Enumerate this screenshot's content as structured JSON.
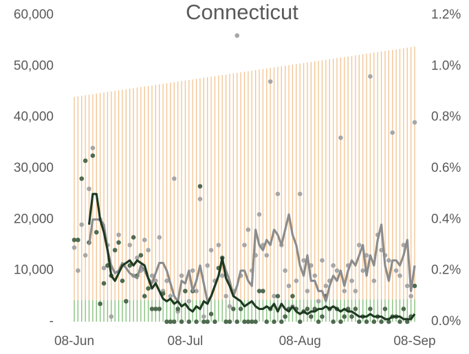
{
  "chart_data": {
    "type": "combo",
    "title": "Connecticut",
    "categories": [
      "08-Jun",
      null,
      null,
      null,
      null,
      null,
      null,
      null,
      null,
      null,
      null,
      null,
      null,
      null,
      null,
      null,
      null,
      null,
      null,
      null,
      null,
      null,
      null,
      null,
      null,
      null,
      null,
      null,
      null,
      null,
      "08-Jul",
      null,
      null,
      null,
      null,
      null,
      null,
      null,
      null,
      null,
      null,
      null,
      null,
      null,
      null,
      null,
      null,
      null,
      null,
      null,
      null,
      null,
      null,
      null,
      null,
      null,
      null,
      null,
      null,
      null,
      null,
      "08-Aug",
      null,
      null,
      null,
      null,
      null,
      null,
      null,
      null,
      null,
      null,
      null,
      null,
      null,
      null,
      null,
      null,
      null,
      null,
      null,
      null,
      null,
      null,
      null,
      null,
      null,
      null,
      null,
      null,
      null,
      null,
      "08-Sep"
    ],
    "ylim": [
      0,
      60000
    ],
    "yticks": [
      {
        "value": 0,
        "label": "-"
      },
      {
        "value": 10000,
        "label": "10,000"
      },
      {
        "value": 20000,
        "label": "20,000"
      },
      {
        "value": 30000,
        "label": "30,000"
      },
      {
        "value": 40000,
        "label": "40,000"
      },
      {
        "value": 50000,
        "label": "50,000"
      },
      {
        "value": 60000,
        "label": "60,000"
      }
    ],
    "y2lim": [
      0,
      1.2
    ],
    "y2ticks": [
      {
        "value": 0,
        "label": "0.0%"
      },
      {
        "value": 0.2,
        "label": "0.2%"
      },
      {
        "value": 0.4,
        "label": "0.4%"
      },
      {
        "value": 0.6,
        "label": "0.6%"
      },
      {
        "value": 0.8,
        "label": "0.8%"
      },
      {
        "value": 1.0,
        "label": "1.0%"
      },
      {
        "value": 1.2,
        "label": "1.2%"
      }
    ],
    "series": [
      {
        "type": "bar",
        "color": "#f2c28e",
        "values": [
          44000,
          44107,
          44214,
          44321,
          44428,
          44535,
          44642,
          44749,
          44856,
          44963,
          45070,
          45177,
          45284,
          45391,
          45498,
          45605,
          45712,
          45819,
          45926,
          46033,
          46140,
          46247,
          46354,
          46461,
          46568,
          46675,
          46782,
          46889,
          46996,
          47103,
          47210,
          47317,
          47424,
          47531,
          47638,
          47745,
          47852,
          47959,
          48066,
          48173,
          48280,
          48387,
          48494,
          48601,
          48708,
          48815,
          48922,
          49029,
          49136,
          49243,
          49350,
          49457,
          49564,
          49671,
          49778,
          49885,
          49992,
          50099,
          50206,
          50313,
          50420,
          50527,
          50634,
          50741,
          50848,
          50955,
          51062,
          51169,
          51276,
          51383,
          51490,
          51597,
          51704,
          51811,
          51918,
          52025,
          52132,
          52239,
          52346,
          52453,
          52560,
          52667,
          52774,
          52881,
          52988,
          53095,
          53202,
          53309,
          53416,
          53523,
          53630,
          53737,
          53844
        ]
      },
      {
        "type": "bar",
        "color": "#7fc37f",
        "values": [
          4200,
          4202,
          4204,
          4206,
          4208,
          4210,
          4212,
          4214,
          4216,
          4218,
          4220,
          4222,
          4224,
          4226,
          4228,
          4230,
          4232,
          4234,
          4236,
          4238,
          4240,
          4242,
          4244,
          4246,
          4248,
          4250,
          4252,
          4254,
          4256,
          4258,
          4260,
          4262,
          4264,
          4266,
          4268,
          4270,
          4272,
          4274,
          4276,
          4278,
          4280,
          4282,
          4284,
          4286,
          4288,
          4290,
          4292,
          4294,
          4296,
          4298,
          4300,
          4302,
          4304,
          4306,
          4308,
          4310,
          4312,
          4314,
          4316,
          4318,
          4320,
          4322,
          4324,
          4326,
          4328,
          4330,
          4332,
          4334,
          4336,
          4338,
          4340,
          4342,
          4344,
          4346,
          4348,
          4350,
          4352,
          4354,
          4356,
          4358,
          4360,
          4362,
          4364,
          4366,
          4368,
          4370,
          4372,
          4374,
          4376,
          4378,
          4380,
          4382,
          4384
        ]
      },
      {
        "type": "scatter",
        "axis": "y2",
        "color": "#a6a6a6",
        "values": [
          0.29,
          0.2,
          0.38,
          0.26,
          0.52,
          0.68,
          0.35,
          0.4,
          0.21,
          0.3,
          0.02,
          0.28,
          0.34,
          0.22,
          0.08,
          0.3,
          0.18,
          0.25,
          0.2,
          0.32,
          0.28,
          0.18,
          0.16,
          0.33,
          0.12,
          0.16,
          0.1,
          0.56,
          0.04,
          0.18,
          0.12,
          0.08,
          0.2,
          0.12,
          0.48,
          0.02,
          0.22,
          0.28,
          0.16,
          0.3,
          0.18,
          0.1,
          0.06,
          0.12,
          1.12,
          0.18,
          0.3,
          0.36,
          0.2,
          0.26,
          0.42,
          0.3,
          0.26,
          0.94,
          0.1,
          0.5,
          0.3,
          0.2,
          0.14,
          0.06,
          0.16,
          0.5,
          0.24,
          0.12,
          0.22,
          0.18,
          0.08,
          0.24,
          0.14,
          0.16,
          0.22,
          0.2,
          0.72,
          0.12,
          0.22,
          0.16,
          0.12,
          0.3,
          0.2,
          0.26,
          0.96,
          0.16,
          0.34,
          0.28,
          0.26,
          0.24,
          0.74,
          0.2,
          0.18,
          0.3,
          0.14,
          0.1,
          0.78
        ]
      },
      {
        "type": "scatter",
        "axis": "y2",
        "color": "#4f6b50",
        "values": [
          0.32,
          0.32,
          0.56,
          0.63,
          0.31,
          0.65,
          0.35,
          0.07,
          0.15,
          0.22,
          0.18,
          0.28,
          0.31,
          0.16,
          0.08,
          0.22,
          0.33,
          0.18,
          0.26,
          0.1,
          0.13,
          0.05,
          0.05,
          0.05,
          0.11,
          0,
          0,
          0,
          0.05,
          0,
          0.12,
          0,
          0.12,
          0,
          0.53,
          0,
          0,
          0.03,
          0,
          0.21,
          0.25,
          0,
          0,
          0.05,
          0,
          0.05,
          0,
          0,
          0,
          0,
          0.12,
          0.12,
          0,
          0.05,
          0,
          0.1,
          0,
          0.02,
          0.05,
          0.1,
          0.05,
          0,
          0.04,
          0.05,
          0.02,
          0.05,
          0,
          0.02,
          0.1,
          0.05,
          0,
          0.05,
          0,
          0.02,
          0.05,
          0.02,
          0.05,
          0,
          0.02,
          0,
          0.05,
          0,
          0.02,
          0,
          0.05,
          0,
          0.02,
          0.02,
          0,
          0.05,
          0,
          0.02,
          0.14
        ]
      },
      {
        "type": "line",
        "axis": "y2",
        "color": "#8c8c8c",
        "values": [
          null,
          null,
          null,
          null,
          0.3,
          0.4,
          0.4,
          0.4,
          0.38,
          0.28,
          0.22,
          0.19,
          0.2,
          0.23,
          0.21,
          0.19,
          0.18,
          0.17,
          0.22,
          0.2,
          0.17,
          0.15,
          0.19,
          0.23,
          0.23,
          0.2,
          0.15,
          0.1,
          0.08,
          0.16,
          0.15,
          0.2,
          0.12,
          0.16,
          0.22,
          0.15,
          0.08,
          0.1,
          0.14,
          0.18,
          0.24,
          0.2,
          0.16,
          0.1,
          0.14,
          0.2,
          0.2,
          0.16,
          0.14,
          0.36,
          0.3,
          0.28,
          0.32,
          0.3,
          0.36,
          0.34,
          0.3,
          0.36,
          0.42,
          0.34,
          0.3,
          0.22,
          0.18,
          0.26,
          0.16,
          0.16,
          0.12,
          0.12,
          0.08,
          0.14,
          0.18,
          0.16,
          0.2,
          0.14,
          0.2,
          0.24,
          0.22,
          0.26,
          0.3,
          0.18,
          0.26,
          0.22,
          0.32,
          0.38,
          0.22,
          0.16,
          0.24,
          0.24,
          0.22,
          0.26,
          0.32,
          0.12,
          0.22
        ]
      },
      {
        "type": "line",
        "axis": "y2",
        "color": "#1e3a22",
        "values": [
          null,
          null,
          null,
          null,
          0.38,
          0.5,
          0.5,
          0.4,
          0.35,
          0.28,
          0.18,
          0.16,
          0.19,
          0.22,
          0.23,
          0.24,
          0.22,
          0.24,
          0.23,
          0.22,
          0.17,
          0.13,
          0.15,
          0.12,
          0.09,
          0.08,
          0.09,
          0.07,
          0.08,
          0.06,
          0.07,
          0.05,
          0.04,
          0.06,
          0.05,
          0.08,
          0.07,
          0.1,
          0.14,
          0.18,
          0.25,
          0.17,
          0.14,
          0.1,
          0.09,
          0.08,
          0.06,
          0.07,
          0.08,
          0.06,
          0.05,
          0.05,
          0.06,
          0.05,
          0.07,
          0.04,
          0.07,
          0.05,
          0.04,
          0.06,
          0.04,
          0.03,
          0.04,
          0.03,
          0.04,
          0.04,
          0.05,
          0.05,
          0.06,
          0.05,
          0.06,
          0.05,
          0.04,
          0.05,
          0.04,
          0.04,
          0.03,
          0.02,
          0.02,
          0.02,
          0.03,
          0.02,
          0.02,
          0.02,
          0.01,
          0.01,
          0.02,
          0.02,
          0.02,
          0.01,
          0.01,
          0.01,
          0.03
        ]
      }
    ]
  }
}
